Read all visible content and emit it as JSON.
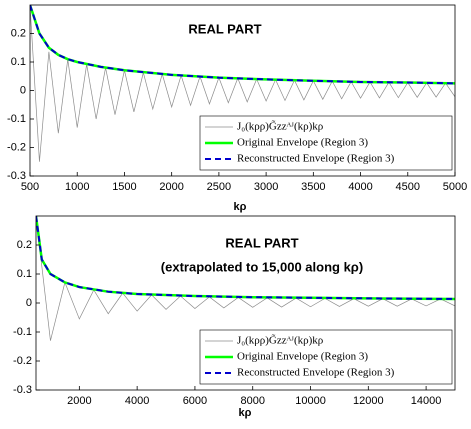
{
  "chart_data": [
    {
      "type": "line",
      "annotations": [
        "REAL PART"
      ],
      "xlabel": "kρ",
      "xlim": [
        500,
        5000
      ],
      "xticks": [
        500,
        1000,
        1500,
        2000,
        2500,
        3000,
        3500,
        4000,
        4500,
        5000
      ],
      "ylim": [
        -0.3,
        0.3
      ],
      "yticks": [
        -0.3,
        -0.2,
        -0.1,
        0,
        0.1,
        0.2
      ],
      "legend": "lower right",
      "series": [
        {
          "name": "J₀(kρρ)G̃zzᴬᴶ(kρ)kρ",
          "color": "#8c8c8c",
          "linestyle": "solid",
          "x": [
            500,
            600,
            700,
            800,
            900,
            1000,
            1100,
            1200,
            1300,
            1400,
            1500,
            1600,
            1700,
            1800,
            1900,
            2000,
            2100,
            2200,
            2300,
            2400,
            2500,
            2600,
            2700,
            2800,
            2900,
            3000,
            3100,
            3200,
            3300,
            3400,
            3500,
            3600,
            3700,
            3800,
            3900,
            4000,
            4100,
            4200,
            4300,
            4400,
            4500,
            4600,
            4700,
            4800,
            4900,
            5000
          ],
          "values": [
            0.3,
            -0.25,
            0.136,
            -0.15,
            0.109,
            -0.13,
            0.092,
            -0.1,
            0.08,
            -0.085,
            0.071,
            -0.075,
            0.063,
            -0.065,
            0.058,
            -0.058,
            0.053,
            -0.052,
            0.049,
            -0.047,
            0.045,
            -0.043,
            0.043,
            -0.04,
            0.04,
            -0.037,
            0.038,
            -0.035,
            0.036,
            -0.033,
            0.034,
            -0.031,
            0.033,
            -0.029,
            0.031,
            -0.027,
            0.03,
            -0.026,
            0.029,
            -0.025,
            0.028,
            -0.024,
            0.027,
            -0.023,
            0.026,
            -0.022
          ]
        },
        {
          "name": "Original Envelope (Region 3)",
          "color": "#00ff00",
          "linestyle": "solid",
          "x": [
            500,
            600,
            700,
            800,
            900,
            1000,
            1250,
            1500,
            2000,
            2500,
            3000,
            3500,
            4000,
            4500,
            5000
          ],
          "values": [
            0.3,
            0.2,
            0.15,
            0.125,
            0.11,
            0.1,
            0.083,
            0.071,
            0.055,
            0.045,
            0.039,
            0.034,
            0.03,
            0.028,
            0.025
          ]
        },
        {
          "name": "Reconstructed Envelope (Region 3)",
          "color": "#0000cc",
          "linestyle": "dashed",
          "x": [
            500,
            600,
            700,
            800,
            900,
            1000,
            1250,
            1500,
            2000,
            2500,
            3000,
            3500,
            4000,
            4500,
            5000
          ],
          "values": [
            0.3,
            0.2,
            0.15,
            0.125,
            0.11,
            0.1,
            0.083,
            0.071,
            0.055,
            0.045,
            0.039,
            0.034,
            0.03,
            0.028,
            0.025
          ]
        }
      ]
    },
    {
      "type": "line",
      "annotations": [
        "REAL PART",
        "(extrapolated to 15,000 along kρ)"
      ],
      "xlabel": "kρ",
      "xlim": [
        500,
        15000
      ],
      "xticks": [
        2000,
        4000,
        6000,
        8000,
        10000,
        12000,
        14000
      ],
      "ylim": [
        -0.3,
        0.3
      ],
      "yticks": [
        -0.3,
        -0.2,
        -0.1,
        0,
        0.1,
        0.2
      ],
      "legend": "lower right",
      "series": [
        {
          "name": "J₀(kρρ)G̃zzᴬᴶ(kρ)kρ",
          "color": "#8c8c8c",
          "linestyle": "solid",
          "x": [
            500,
            1000,
            1500,
            2000,
            2500,
            3000,
            3500,
            4000,
            4500,
            5000,
            5500,
            6000,
            6500,
            7000,
            7500,
            8000,
            8500,
            9000,
            9500,
            10000,
            10500,
            11000,
            11500,
            12000,
            12500,
            13000,
            13500,
            14000,
            14500,
            15000
          ],
          "values": [
            0.3,
            -0.13,
            0.071,
            -0.055,
            0.045,
            -0.037,
            0.034,
            -0.028,
            0.028,
            -0.022,
            0.024,
            -0.019,
            0.021,
            -0.017,
            0.019,
            -0.015,
            0.018,
            -0.014,
            0.017,
            -0.013,
            0.016,
            -0.012,
            0.015,
            -0.011,
            0.015,
            -0.011,
            0.014,
            -0.01,
            0.014,
            -0.01
          ]
        },
        {
          "name": "Original Envelope (Region 3)",
          "color": "#00ff00",
          "linestyle": "solid",
          "x": [
            500,
            700,
            1000,
            1500,
            2000,
            3000,
            4000,
            6000,
            8000,
            10000,
            12000,
            15000
          ],
          "values": [
            0.3,
            0.15,
            0.1,
            0.071,
            0.055,
            0.039,
            0.031,
            0.024,
            0.02,
            0.018,
            0.016,
            0.014
          ]
        },
        {
          "name": "Reconstructed Envelope (Region 3)",
          "color": "#0000cc",
          "linestyle": "dashed",
          "x": [
            500,
            700,
            1000,
            1500,
            2000,
            3000,
            4000,
            6000,
            8000,
            10000,
            12000,
            15000
          ],
          "values": [
            0.3,
            0.15,
            0.1,
            0.071,
            0.055,
            0.039,
            0.031,
            0.024,
            0.02,
            0.018,
            0.016,
            0.014
          ]
        }
      ]
    }
  ]
}
